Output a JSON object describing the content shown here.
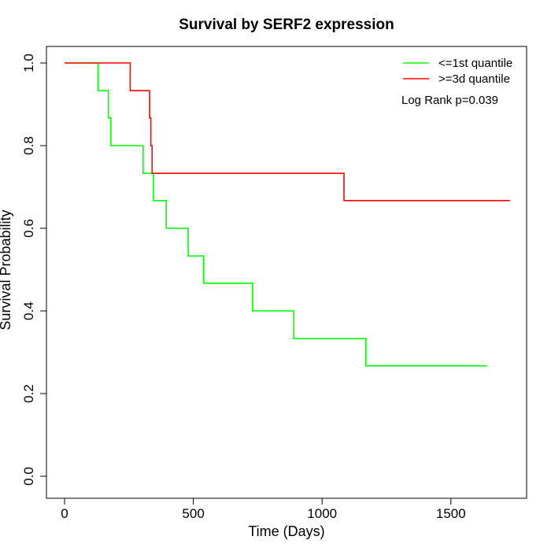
{
  "chart_data": {
    "type": "line",
    "step": true,
    "title": "Survival by SERF2 expression",
    "xlabel": "Time (Days)",
    "ylabel": "Survival Probability",
    "xlim": [
      0,
      1800
    ],
    "ylim": [
      0,
      1.0
    ],
    "xticks": [
      0,
      500,
      1000,
      1500
    ],
    "yticks": [
      "0.0",
      "0.2",
      "0.4",
      "0.6",
      "0.8",
      "1.0"
    ],
    "grid": false,
    "legend_position": "top-right",
    "annotation": "Log Rank p=0.039",
    "series": [
      {
        "name": "<=1st quantile",
        "color": "#00ff00",
        "x": [
          0,
          130,
          170,
          180,
          305,
          345,
          395,
          480,
          540,
          730,
          890,
          1170,
          1640
        ],
        "y": [
          1.0,
          0.933,
          0.867,
          0.8,
          0.733,
          0.667,
          0.6,
          0.533,
          0.467,
          0.4,
          0.333,
          0.267,
          0.267
        ]
      },
      {
        "name": ">=3d quantile",
        "color": "#ff0000",
        "x": [
          0,
          255,
          330,
          335,
          340,
          1085,
          1730
        ],
        "y": [
          1.0,
          0.933,
          0.867,
          0.8,
          0.733,
          0.667,
          0.667
        ]
      }
    ]
  }
}
